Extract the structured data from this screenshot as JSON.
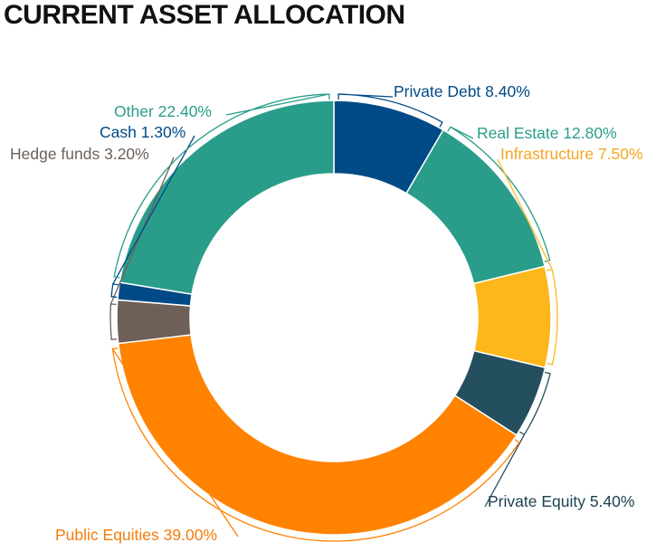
{
  "chart_data": {
    "type": "donut",
    "title": "CURRENT ASSET ALLOCATION",
    "unit": "%",
    "slices": [
      {
        "label": "Private Debt",
        "value": 8.4,
        "display": "Private Debt 8.40%",
        "color": "#004a87",
        "label_color": "#004a87",
        "leader_color": "#004a87"
      },
      {
        "label": "Real Estate",
        "value": 12.8,
        "display": "Real Estate 12.80%",
        "color": "#2a9d8a",
        "label_color": "#2a9d8a",
        "leader_color": "#2a9d8a"
      },
      {
        "label": "Infrastructure",
        "value": 7.5,
        "display": "Infrastructure 7.50%",
        "color": "#fdb71b",
        "label_color": "#f5a623",
        "leader_color": "#fdb71b"
      },
      {
        "label": "Private Equity",
        "value": 5.4,
        "display": "Private Equity 5.40%",
        "color": "#244f5e",
        "label_color": "#1b4351",
        "leader_color": "#244f5e"
      },
      {
        "label": "Public Equities",
        "value": 39.0,
        "display": "Public Equities 39.00%",
        "color": "#ff8200",
        "label_color": "#f47c0a",
        "leader_color": "#ff8200"
      },
      {
        "label": "Hedge funds",
        "value": 3.2,
        "display": "Hedge funds 3.20%",
        "color": "#6e5f58",
        "label_color": "#6e5f58",
        "leader_color": "#6e5f58"
      },
      {
        "label": "Cash",
        "value": 1.3,
        "display": "Cash 1.30%",
        "color": "#004a87",
        "label_color": "#004a87",
        "leader_color": "#004a87"
      },
      {
        "label": "Other",
        "value": 22.4,
        "display": "Other 22.40%",
        "color": "#2a9d8a",
        "label_color": "#2a9d8a",
        "leader_color": "#2a9d8a"
      }
    ]
  }
}
